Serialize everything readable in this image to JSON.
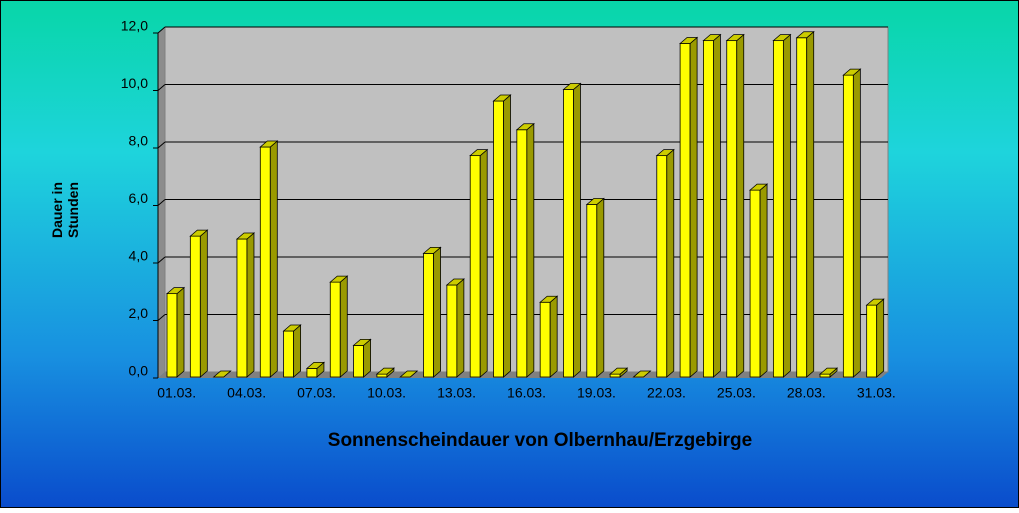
{
  "chart_data": {
    "type": "bar3d",
    "title": "Sonnenscheindauer von Olbernhau/Erzgebirge",
    "y_label": [
      "Dauer in",
      "Stunden"
    ],
    "categories": [
      "01.03.",
      null,
      null,
      "04.03.",
      null,
      null,
      "07.03.",
      null,
      null,
      "10.03.",
      null,
      null,
      "13.03.",
      null,
      null,
      "16.03.",
      null,
      null,
      "19.03.",
      null,
      null,
      "22.03.",
      null,
      null,
      "25.03.",
      null,
      null,
      "28.03.",
      null,
      null,
      "31.03."
    ],
    "values": [
      2.9,
      4.9,
      0,
      4.8,
      8.0,
      1.6,
      0.3,
      3.3,
      1.1,
      0.1,
      0,
      4.3,
      3.2,
      7.7,
      9.6,
      8.6,
      2.6,
      10.0,
      6.0,
      0.1,
      0,
      7.7,
      11.6,
      11.7,
      11.7,
      6.5,
      11.7,
      11.8,
      0.1,
      10.5,
      2.5
    ],
    "color": "#ffff00",
    "side_color": "#9a9a00",
    "top_color": "#cccc00",
    "ylim": [
      0,
      12
    ],
    "yticks": [
      {
        "value": 0,
        "label": "0,0"
      },
      {
        "value": 2,
        "label": "2,0"
      },
      {
        "value": 4,
        "label": "4,0"
      },
      {
        "value": 6,
        "label": "6,0"
      },
      {
        "value": 8,
        "label": "8,0"
      },
      {
        "value": 10,
        "label": "10,0"
      },
      {
        "value": 12,
        "label": "12,0"
      }
    ],
    "grid": true
  }
}
